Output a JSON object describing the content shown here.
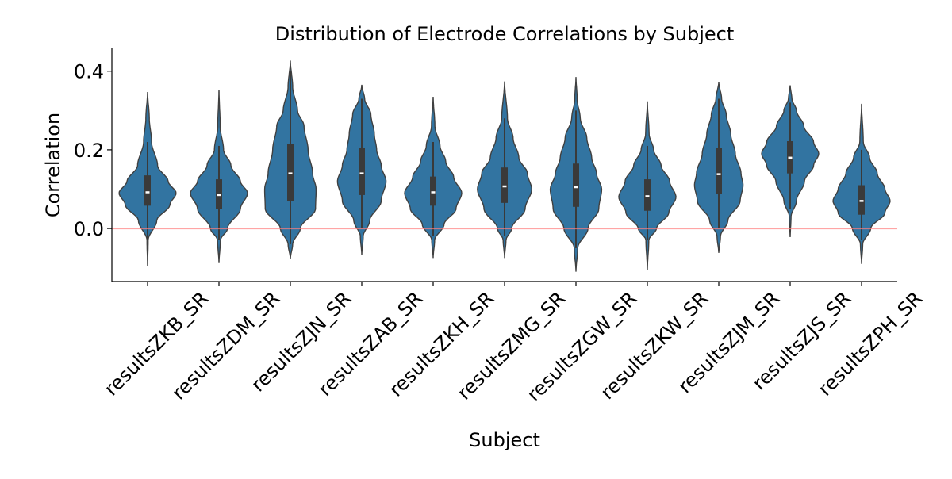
{
  "colors": {
    "violin": "#3274a1",
    "violin_edge": "#404040",
    "box": "#3a3a3a",
    "median": "#ffffff",
    "reference_line": "#ff7f7f"
  },
  "chart_data": {
    "type": "violin",
    "title": "Distribution of Electrode Correlations by Subject",
    "xlabel": "Subject",
    "ylabel": "Correlation",
    "ylim": [
      -0.135,
      0.46
    ],
    "yticks": [
      0.0,
      0.2,
      0.4
    ],
    "ytick_labels": [
      "0.0",
      "0.2",
      "0.4"
    ],
    "reference_line": {
      "y": 0.0
    },
    "grid": false,
    "legend": "none",
    "categories": [
      "resultsZKB_SR",
      "resultsZDM_SR",
      "resultsZJN_SR",
      "resultsZAB_SR",
      "resultsZKH_SR",
      "resultsZMG_SR",
      "resultsZGW_SR",
      "resultsZKW_SR",
      "resultsZJM_SR",
      "resultsZJS_SR",
      "resultsZPH_SR"
    ],
    "series": [
      {
        "category": "resultsZKB_SR",
        "min": -0.095,
        "q1": 0.058,
        "median": 0.092,
        "q3": 0.135,
        "max": 0.347,
        "whisker_low": -0.03,
        "whisker_high": 0.22,
        "profile": [
          [
            -0.095,
            0.002
          ],
          [
            -0.03,
            0.02
          ],
          [
            0.02,
            0.32
          ],
          [
            0.06,
            0.78
          ],
          [
            0.09,
            1.0
          ],
          [
            0.12,
            0.72
          ],
          [
            0.16,
            0.35
          ],
          [
            0.22,
            0.14
          ],
          [
            0.28,
            0.06
          ],
          [
            0.347,
            0.002
          ]
        ]
      },
      {
        "category": "resultsZDM_SR",
        "min": -0.088,
        "q1": 0.05,
        "median": 0.085,
        "q3": 0.125,
        "max": 0.352,
        "whisker_low": -0.03,
        "whisker_high": 0.21,
        "profile": [
          [
            -0.088,
            0.002
          ],
          [
            -0.03,
            0.05
          ],
          [
            0.0,
            0.3
          ],
          [
            0.05,
            0.75
          ],
          [
            0.09,
            1.0
          ],
          [
            0.12,
            0.75
          ],
          [
            0.16,
            0.42
          ],
          [
            0.2,
            0.16
          ],
          [
            0.26,
            0.04
          ],
          [
            0.352,
            0.002
          ]
        ]
      },
      {
        "category": "resultsZJN_SR",
        "min": -0.077,
        "q1": 0.07,
        "median": 0.14,
        "q3": 0.215,
        "max": 0.427,
        "whisker_low": -0.04,
        "whisker_high": 0.4,
        "profile": [
          [
            -0.077,
            0.002
          ],
          [
            -0.04,
            0.08
          ],
          [
            0.0,
            0.35
          ],
          [
            0.05,
            0.88
          ],
          [
            0.1,
            0.9
          ],
          [
            0.14,
            0.78
          ],
          [
            0.2,
            0.62
          ],
          [
            0.26,
            0.48
          ],
          [
            0.3,
            0.25
          ],
          [
            0.36,
            0.08
          ],
          [
            0.427,
            0.002
          ]
        ]
      },
      {
        "category": "resultsZAB_SR",
        "min": -0.067,
        "q1": 0.085,
        "median": 0.14,
        "q3": 0.205,
        "max": 0.364,
        "whisker_low": 0.0,
        "whisker_high": 0.33,
        "profile": [
          [
            -0.067,
            0.002
          ],
          [
            -0.02,
            0.05
          ],
          [
            0.02,
            0.28
          ],
          [
            0.07,
            0.68
          ],
          [
            0.12,
            0.85
          ],
          [
            0.16,
            0.68
          ],
          [
            0.2,
            0.52
          ],
          [
            0.24,
            0.44
          ],
          [
            0.29,
            0.32
          ],
          [
            0.33,
            0.1
          ],
          [
            0.364,
            0.002
          ]
        ]
      },
      {
        "category": "resultsZKH_SR",
        "min": -0.075,
        "q1": 0.058,
        "median": 0.092,
        "q3": 0.132,
        "max": 0.335,
        "whisker_low": -0.02,
        "whisker_high": 0.22,
        "profile": [
          [
            -0.075,
            0.002
          ],
          [
            -0.03,
            0.05
          ],
          [
            0.01,
            0.38
          ],
          [
            0.05,
            0.8
          ],
          [
            0.09,
            1.0
          ],
          [
            0.13,
            0.72
          ],
          [
            0.17,
            0.44
          ],
          [
            0.21,
            0.24
          ],
          [
            0.26,
            0.06
          ],
          [
            0.335,
            0.002
          ]
        ]
      },
      {
        "category": "resultsZMG_SR",
        "min": -0.075,
        "q1": 0.065,
        "median": 0.107,
        "q3": 0.155,
        "max": 0.374,
        "whisker_low": -0.02,
        "whisker_high": 0.28,
        "profile": [
          [
            -0.075,
            0.002
          ],
          [
            -0.03,
            0.05
          ],
          [
            0.0,
            0.25
          ],
          [
            0.05,
            0.72
          ],
          [
            0.1,
            0.95
          ],
          [
            0.14,
            0.8
          ],
          [
            0.18,
            0.5
          ],
          [
            0.23,
            0.3
          ],
          [
            0.28,
            0.1
          ],
          [
            0.374,
            0.002
          ]
        ]
      },
      {
        "category": "resultsZGW_SR",
        "min": -0.11,
        "q1": 0.055,
        "median": 0.105,
        "q3": 0.165,
        "max": 0.385,
        "whisker_low": -0.05,
        "whisker_high": 0.3,
        "profile": [
          [
            -0.11,
            0.002
          ],
          [
            -0.05,
            0.06
          ],
          [
            0.0,
            0.42
          ],
          [
            0.05,
            0.8
          ],
          [
            0.1,
            0.9
          ],
          [
            0.14,
            0.72
          ],
          [
            0.18,
            0.55
          ],
          [
            0.23,
            0.38
          ],
          [
            0.28,
            0.15
          ],
          [
            0.33,
            0.04
          ],
          [
            0.385,
            0.002
          ]
        ]
      },
      {
        "category": "resultsZKW_SR",
        "min": -0.105,
        "q1": 0.045,
        "median": 0.082,
        "q3": 0.125,
        "max": 0.322,
        "whisker_low": -0.03,
        "whisker_high": 0.21,
        "profile": [
          [
            -0.105,
            0.002
          ],
          [
            -0.03,
            0.05
          ],
          [
            0.0,
            0.32
          ],
          [
            0.04,
            0.75
          ],
          [
            0.08,
            1.0
          ],
          [
            0.12,
            0.78
          ],
          [
            0.16,
            0.48
          ],
          [
            0.2,
            0.22
          ],
          [
            0.24,
            0.06
          ],
          [
            0.322,
            0.002
          ]
        ]
      },
      {
        "category": "resultsZJM_SR",
        "min": -0.062,
        "q1": 0.088,
        "median": 0.138,
        "q3": 0.205,
        "max": 0.372,
        "whisker_low": 0.0,
        "whisker_high": 0.33,
        "profile": [
          [
            -0.062,
            0.002
          ],
          [
            -0.02,
            0.06
          ],
          [
            0.02,
            0.32
          ],
          [
            0.07,
            0.75
          ],
          [
            0.11,
            0.85
          ],
          [
            0.14,
            0.78
          ],
          [
            0.19,
            0.58
          ],
          [
            0.24,
            0.42
          ],
          [
            0.29,
            0.26
          ],
          [
            0.33,
            0.1
          ],
          [
            0.372,
            0.002
          ]
        ]
      },
      {
        "category": "resultsZJS_SR",
        "min": -0.022,
        "q1": 0.14,
        "median": 0.18,
        "q3": 0.222,
        "max": 0.364,
        "whisker_low": 0.05,
        "whisker_high": 0.32,
        "profile": [
          [
            -0.022,
            0.002
          ],
          [
            0.03,
            0.03
          ],
          [
            0.07,
            0.22
          ],
          [
            0.12,
            0.5
          ],
          [
            0.16,
            0.82
          ],
          [
            0.19,
            1.0
          ],
          [
            0.22,
            0.82
          ],
          [
            0.26,
            0.48
          ],
          [
            0.3,
            0.22
          ],
          [
            0.33,
            0.06
          ],
          [
            0.364,
            0.002
          ]
        ]
      },
      {
        "category": "resultsZPH_SR",
        "min": -0.09,
        "q1": 0.035,
        "median": 0.07,
        "q3": 0.11,
        "max": 0.317,
        "whisker_low": -0.03,
        "whisker_high": 0.2,
        "profile": [
          [
            -0.09,
            0.002
          ],
          [
            -0.04,
            0.04
          ],
          [
            0.0,
            0.32
          ],
          [
            0.04,
            0.82
          ],
          [
            0.07,
            1.0
          ],
          [
            0.1,
            0.82
          ],
          [
            0.14,
            0.55
          ],
          [
            0.18,
            0.28
          ],
          [
            0.22,
            0.06
          ],
          [
            0.317,
            0.002
          ]
        ]
      }
    ]
  }
}
